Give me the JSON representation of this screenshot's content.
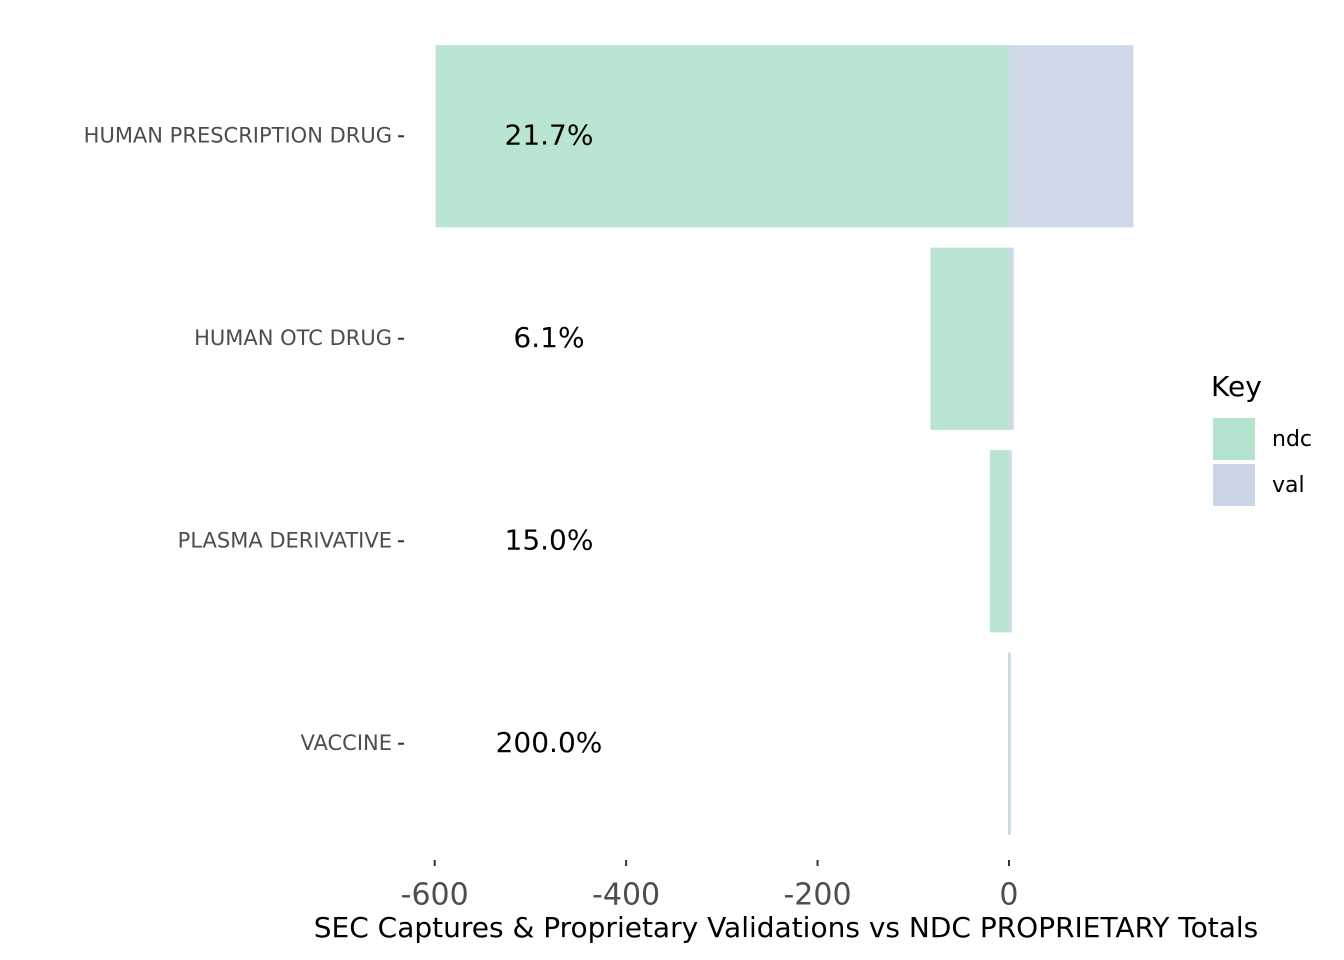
{
  "chart_data": {
    "type": "diverging-bar",
    "xlabel": "SEC Captures & Proprietary Validations vs  NDC PROPRIETARY Totals",
    "categories": [
      "HUMAN PRESCRIPTION DRUG",
      "HUMAN OTC DRUG",
      "PLASMA DERIVATIVE",
      "VACCINE"
    ],
    "series": [
      {
        "name": "ndc",
        "color": "#b3e2cd",
        "values": [
          -599,
          -82,
          -20,
          -1
        ]
      },
      {
        "name": "val",
        "color": "#cbd5e8",
        "values": [
          130,
          5,
          3,
          2
        ]
      }
    ],
    "percent_labels": [
      "21.7%",
      "6.1%",
      "15.0%",
      "200.0%"
    ],
    "legend_title": "Key",
    "legend": "right",
    "xlim": [
      -631,
      163
    ],
    "xticks": [
      -600,
      -400,
      -200,
      0
    ],
    "grid": false
  }
}
